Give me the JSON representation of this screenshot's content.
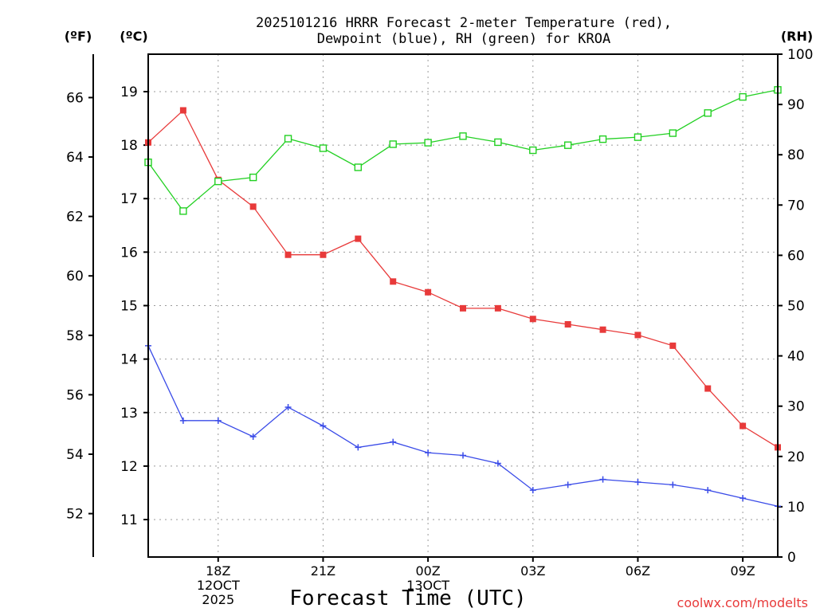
{
  "chart_data": {
    "type": "line",
    "title_line1": "2025101216 HRRR Forecast 2-meter Temperature (red),",
    "title_line2": "Dewpoint (blue), RH (green) for KROA",
    "left_outer_unit": "(ºF)",
    "left_inner_unit": "(ºC)",
    "right_unit": "(RH)",
    "xlabel": "Forecast Time (UTC)",
    "credit": "coolwx.com/modelts",
    "grid": true,
    "x_hours": [
      16,
      17,
      18,
      19,
      20,
      21,
      22,
      23,
      24,
      25,
      26,
      27,
      28,
      29,
      30,
      31,
      32,
      33,
      34
    ],
    "xlim": [
      16,
      34
    ],
    "ylim_c": [
      10.3,
      19.7
    ],
    "ylim_rh": [
      0,
      100
    ],
    "x_ticks": [
      {
        "hour": 18,
        "lines": [
          "18Z",
          "12OCT",
          "2025"
        ]
      },
      {
        "hour": 21,
        "lines": [
          "21Z"
        ]
      },
      {
        "hour": 24,
        "lines": [
          "00Z",
          "13OCT"
        ]
      },
      {
        "hour": 27,
        "lines": [
          "03Z"
        ]
      },
      {
        "hour": 30,
        "lines": [
          "06Z"
        ]
      },
      {
        "hour": 33,
        "lines": [
          "09Z"
        ]
      }
    ],
    "celsius_ticks": [
      11,
      12,
      13,
      14,
      15,
      16,
      17,
      18,
      19
    ],
    "fahrenheit_ticks": [
      52,
      54,
      56,
      58,
      60,
      62,
      64,
      66
    ],
    "rh_ticks": [
      0,
      10,
      20,
      30,
      40,
      50,
      60,
      70,
      80,
      90,
      100
    ],
    "series": [
      {
        "name": "Temperature",
        "units": "C",
        "color": "#e83a3a",
        "marker": "filled-square",
        "values": [
          18.05,
          18.65,
          17.35,
          16.85,
          15.95,
          15.95,
          16.25,
          15.45,
          15.25,
          14.95,
          14.95,
          14.75,
          14.65,
          14.55,
          14.45,
          14.25,
          13.45,
          12.75,
          12.35
        ]
      },
      {
        "name": "Dewpoint",
        "units": "C",
        "color": "#3a4be8",
        "marker": "plus",
        "values": [
          14.25,
          12.85,
          12.85,
          12.55,
          13.1,
          12.75,
          12.35,
          12.45,
          12.25,
          12.2,
          12.05,
          11.55,
          11.65,
          11.75,
          11.7,
          11.65,
          11.55,
          11.4,
          11.25
        ]
      },
      {
        "name": "RH",
        "units": "%",
        "color": "#22d022",
        "marker": "open-square",
        "values": [
          78.5,
          68.8,
          74.7,
          75.5,
          83.2,
          81.3,
          77.5,
          82.1,
          82.4,
          83.7,
          82.5,
          80.9,
          81.9,
          83.1,
          83.5,
          84.3,
          88.3,
          91.5,
          92.9
        ]
      }
    ]
  }
}
